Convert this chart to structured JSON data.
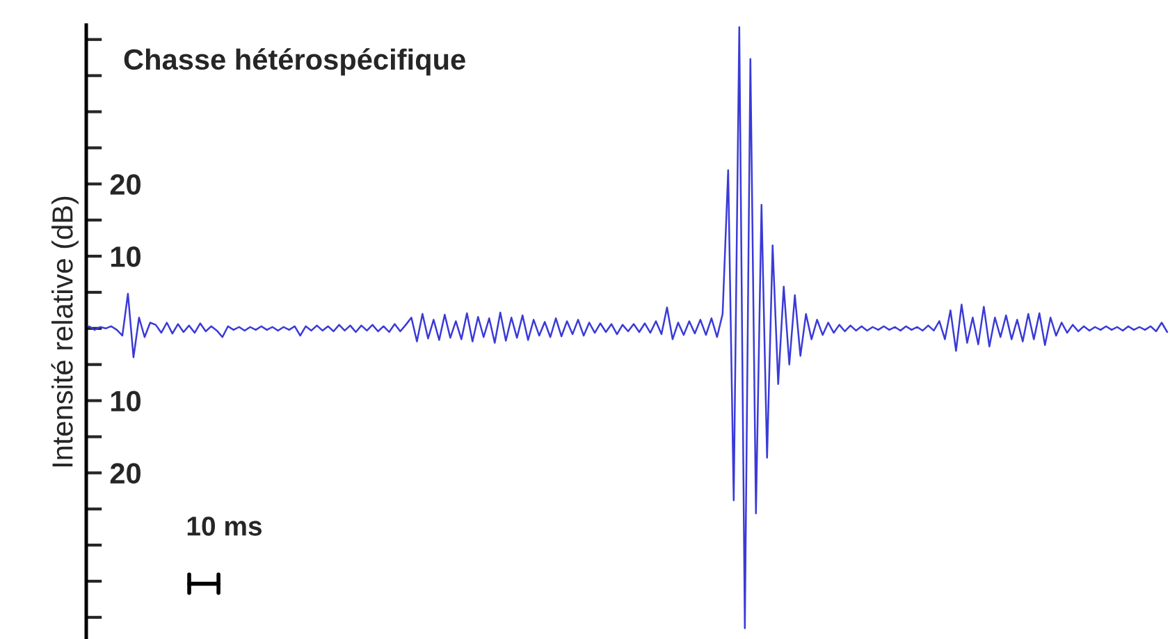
{
  "chart_data": {
    "type": "line",
    "title": "Chasse hétérospécifique",
    "ylabel": "Intensité relative (dB)",
    "annotations": [
      "10 ms"
    ],
    "categories": [
      null,
      null,
      null,
      null,
      null,
      null,
      null,
      null,
      null,
      null,
      null,
      null,
      null,
      null,
      null,
      null,
      null,
      null,
      null,
      null,
      null,
      null,
      null,
      null,
      null,
      null,
      null,
      null,
      null,
      null,
      null,
      null,
      null,
      null,
      null,
      null,
      null,
      null,
      null,
      null,
      null,
      null,
      null,
      null,
      null,
      null,
      null,
      null,
      null,
      null,
      null,
      null,
      null,
      null,
      null,
      null,
      null,
      null,
      null,
      null,
      null,
      null,
      null,
      null,
      null,
      null,
      null,
      null,
      null,
      null,
      null,
      null,
      null,
      null,
      null,
      null,
      null,
      null,
      null,
      null,
      null,
      null,
      null,
      null,
      null,
      null,
      null,
      null,
      null,
      null,
      null,
      null,
      null,
      null,
      null,
      null,
      null,
      null,
      null,
      null,
      null,
      null,
      null,
      null,
      null,
      null,
      null,
      null,
      null,
      null,
      null,
      null,
      null,
      null,
      null,
      null,
      null,
      null,
      null,
      null,
      null,
      null,
      null,
      null,
      null,
      null,
      null,
      null,
      null,
      null,
      null,
      null,
      null,
      null,
      null,
      null,
      null,
      null,
      null,
      null,
      null,
      null,
      null,
      null,
      null,
      null,
      null,
      null,
      null,
      null,
      null,
      null,
      null,
      null,
      null,
      null,
      null,
      null,
      null,
      null,
      null,
      null,
      null,
      null,
      null,
      null,
      null,
      null,
      null,
      null,
      null,
      null,
      null,
      null,
      null,
      null,
      null,
      null,
      null,
      null,
      null,
      null,
      null,
      null,
      null,
      null,
      null,
      null,
      null,
      null,
      null,
      null,
      null,
      null,
      null
    ],
    "series": [
      {
        "color": "#3a3ad8",
        "values": [
          0.3,
          -0.2,
          0.2,
          0,
          0.3,
          -0.2,
          -1.0,
          4.8,
          -4.0,
          1.5,
          -1.2,
          0.8,
          0.5,
          -0.6,
          0.8,
          -0.7,
          0.6,
          -0.5,
          0.4,
          -0.6,
          0.7,
          -0.4,
          0.3,
          -0.3,
          -1.2,
          0.3,
          -0.2,
          0.2,
          -0.3,
          0.2,
          -0.2,
          0.3,
          -0.2,
          0.2,
          -0.3,
          0.2,
          -0.2,
          0.3,
          -1.0,
          0.3,
          -0.3,
          0.4,
          -0.3,
          0.3,
          -0.4,
          0.5,
          -0.3,
          0.4,
          -0.5,
          0.4,
          -0.3,
          0.5,
          -0.4,
          0.3,
          -0.5,
          0.6,
          -0.4,
          0.5,
          1.5,
          -1.8,
          2.0,
          -1.4,
          1.2,
          -1.6,
          1.9,
          -1.3,
          1.0,
          -1.5,
          2.1,
          -1.8,
          1.6,
          -1.2,
          1.4,
          -2.0,
          2.2,
          -1.7,
          1.5,
          -1.3,
          1.8,
          -1.6,
          1.2,
          -1.0,
          0.9,
          -1.2,
          1.4,
          -1.1,
          1.0,
          -0.8,
          1.2,
          -1.0,
          0.8,
          -0.6,
          0.7,
          -0.5,
          0.6,
          -0.8,
          0.5,
          -0.4,
          0.6,
          -0.5,
          0.7,
          -0.6,
          1.0,
          -0.8,
          2.9,
          -1.5,
          0.8,
          -0.9,
          1.0,
          -0.7,
          1.2,
          -0.9,
          1.4,
          -1.2,
          2.0,
          21.9,
          -23.8,
          41.7,
          -41.5,
          37.3,
          -25.6,
          17.1,
          -17.9,
          11.5,
          -7.7,
          5.8,
          -5.0,
          4.6,
          -3.8,
          2.0,
          -1.5,
          1.2,
          -0.9,
          0.8,
          -0.6,
          0.5,
          -0.4,
          0.4,
          -0.3,
          0.3,
          -0.3,
          0.2,
          -0.2,
          0.3,
          -0.2,
          0.2,
          -0.3,
          0.3,
          -0.2,
          0.2,
          -0.3,
          0.4,
          -0.3,
          1.0,
          -1.5,
          2.5,
          -3.1,
          3.3,
          -2.0,
          1.5,
          -2.2,
          3.0,
          -2.5,
          1.5,
          -1.2,
          1.8,
          -1.5,
          1.2,
          -1.8,
          2.0,
          -1.5,
          2.1,
          -2.3,
          1.5,
          -1.0,
          0.8,
          -0.6,
          0.5,
          -0.4,
          0.3,
          -0.3,
          0.2,
          -0.2,
          0.3,
          -0.2,
          0.2,
          -0.3,
          0.3,
          -0.2,
          0.2,
          -0.2,
          0.3,
          -0.4,
          0.8,
          -0.5
        ]
      }
    ],
    "ylim": [
      -43,
      42
    ],
    "yticks": [
      {
        "value": 40,
        "label": null
      },
      {
        "value": 35,
        "label": null
      },
      {
        "value": 30,
        "label": null
      },
      {
        "value": 25,
        "label": null
      },
      {
        "value": 20,
        "label": "20"
      },
      {
        "value": 15,
        "label": null
      },
      {
        "value": 10,
        "label": "10"
      },
      {
        "value": 5,
        "label": null
      },
      {
        "value": 0,
        "label": null
      },
      {
        "value": -5,
        "label": null
      },
      {
        "value": -10,
        "label": "10"
      },
      {
        "value": -15,
        "label": null
      },
      {
        "value": -20,
        "label": "20"
      },
      {
        "value": -25,
        "label": null
      },
      {
        "value": -30,
        "label": null
      },
      {
        "value": -35,
        "label": null
      },
      {
        "value": -40,
        "label": null
      }
    ],
    "tick_labels": "y",
    "grid": false,
    "legend": false,
    "marker": "none",
    "line_style": "solid"
  }
}
